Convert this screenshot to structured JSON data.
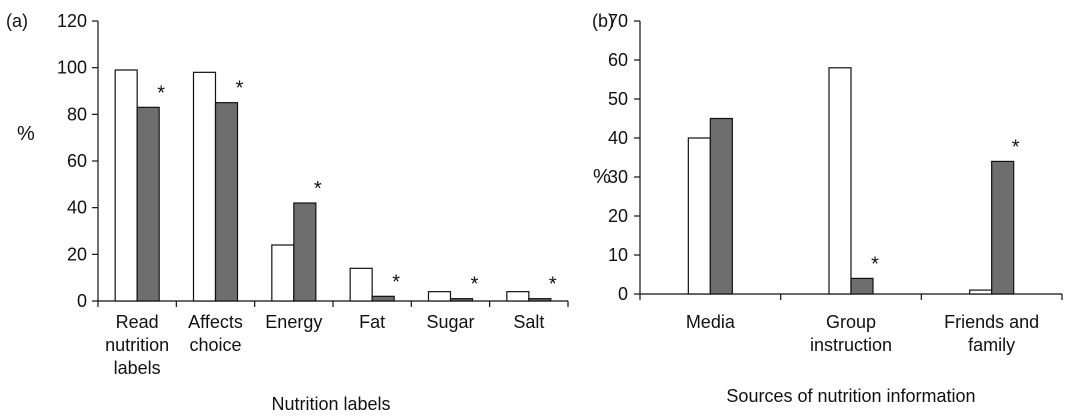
{
  "chart_data": [
    {
      "type": "bar",
      "panel_label": "(a)",
      "ylabel": "%",
      "xlabel": "Nutrition labels",
      "ylim": [
        0,
        120
      ],
      "yticks": [
        0,
        20,
        40,
        60,
        80,
        100,
        120
      ],
      "grid": false,
      "legend": "none",
      "categories": [
        [
          "Read",
          "nutrition",
          "labels"
        ],
        [
          "Affects",
          "choice"
        ],
        [
          "Energy"
        ],
        [
          "Fat"
        ],
        [
          "Sugar"
        ],
        [
          "Salt"
        ]
      ],
      "series": [
        {
          "fill": "#ffffff",
          "values": [
            99,
            98,
            24,
            14,
            4,
            4
          ]
        },
        {
          "fill": "#6e6e6e",
          "values": [
            83,
            85,
            42,
            2,
            1,
            1
          ]
        }
      ],
      "annotations": [
        {
          "category": 0,
          "series": 1,
          "text": "*"
        },
        {
          "category": 1,
          "series": 1,
          "text": "*"
        },
        {
          "category": 2,
          "series": 1,
          "text": "*"
        },
        {
          "category": 3,
          "series": 1,
          "text": "*"
        },
        {
          "category": 4,
          "series": 1,
          "text": "*"
        },
        {
          "category": 5,
          "series": 1,
          "text": "*"
        }
      ]
    },
    {
      "type": "bar",
      "panel_label": "(b)",
      "ylabel": "%",
      "xlabel": "Sources of nutrition information",
      "ylim": [
        0,
        70
      ],
      "yticks": [
        0,
        10,
        20,
        30,
        40,
        50,
        60,
        70
      ],
      "grid": false,
      "legend": "none",
      "categories": [
        [
          "Media"
        ],
        [
          "Group",
          "instruction"
        ],
        [
          "Friends and",
          "family"
        ]
      ],
      "series": [
        {
          "fill": "#ffffff",
          "values": [
            40,
            58,
            1
          ]
        },
        {
          "fill": "#6e6e6e",
          "values": [
            45,
            4,
            34
          ]
        }
      ],
      "annotations": [
        {
          "category": 1,
          "series": 1,
          "text": "*"
        },
        {
          "category": 2,
          "series": 1,
          "text": "*"
        }
      ]
    }
  ]
}
